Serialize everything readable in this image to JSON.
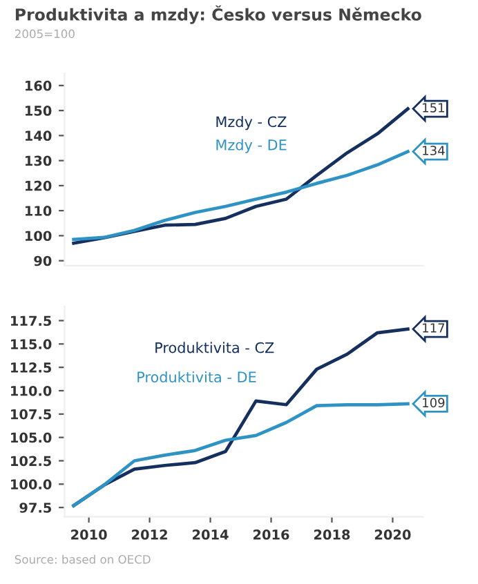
{
  "chart_data": [
    {
      "type": "line",
      "title": "Produktivita a mzdy: Česko versus Německo",
      "subtitle": "2005=100",
      "x": [
        2009.5,
        2010.5,
        2011.5,
        2012.5,
        2013.5,
        2014.5,
        2015.5,
        2016.5,
        2017.5,
        2018.5,
        2019.5,
        2020.5
      ],
      "series": [
        {
          "name": "Mzdy - CZ",
          "color": "#15305e",
          "values": [
            97,
            99.2,
            101.7,
            104.2,
            104.5,
            106.9,
            111.7,
            114.6,
            124.1,
            133.1,
            140.7,
            150.7
          ],
          "value_labels": [
            null,
            null,
            null,
            null,
            null,
            null,
            null,
            null,
            null,
            null,
            null,
            "151"
          ]
        },
        {
          "name": "Mzdy - DE",
          "color": "#2e93c4",
          "values": [
            98.5,
            99.3,
            102.1,
            106.1,
            109.3,
            111.7,
            114.6,
            117.4,
            120.9,
            124.1,
            128.3,
            133.6
          ],
          "value_labels": [
            null,
            null,
            null,
            null,
            null,
            null,
            null,
            null,
            null,
            null,
            null,
            "134"
          ]
        }
      ],
      "xlim": [
        2009.2,
        2021
      ],
      "xticks": [
        2010,
        2012,
        2014,
        2016,
        2018,
        2020
      ],
      "ylim": [
        88,
        165
      ],
      "yticks": [
        90,
        100,
        110,
        120,
        130,
        140,
        150,
        160
      ],
      "tick_labels": "y",
      "grid": false,
      "legend": false
    },
    {
      "type": "line",
      "x": [
        2009.5,
        2010.5,
        2011.5,
        2012.5,
        2013.5,
        2014.5,
        2015.5,
        2016.5,
        2017.5,
        2018.5,
        2019.5,
        2020.5
      ],
      "series": [
        {
          "name": "Produktivita - CZ",
          "color": "#15305e",
          "values": [
            97.7,
            99.9,
            101.6,
            102.0,
            102.3,
            103.5,
            108.9,
            108.5,
            112.3,
            113.9,
            116.2,
            116.6
          ],
          "value_labels": [
            null,
            null,
            null,
            null,
            null,
            null,
            null,
            null,
            null,
            null,
            null,
            "117"
          ]
        },
        {
          "name": "Produktivita - DE",
          "color": "#2e93c4",
          "values": [
            97.7,
            99.9,
            102.5,
            103.1,
            103.6,
            104.7,
            105.2,
            106.6,
            108.4,
            108.5,
            108.5,
            108.6
          ],
          "value_labels": [
            null,
            null,
            null,
            null,
            null,
            null,
            null,
            null,
            null,
            null,
            null,
            "109"
          ]
        }
      ],
      "annotations": [
        "Source: based on OECD"
      ],
      "xlim": [
        2009.2,
        2021
      ],
      "xticks": [
        2010,
        2012,
        2014,
        2016,
        2018,
        2020
      ],
      "ylim": [
        96.5,
        119
      ],
      "yticks": [
        {
          "value": 97.5,
          "label": "97.5"
        },
        {
          "value": 100,
          "label": "100.0"
        },
        {
          "value": 102.5,
          "label": "102.5"
        },
        {
          "value": 105,
          "label": "105.0"
        },
        {
          "value": 107.5,
          "label": "107.5"
        },
        {
          "value": 110,
          "label": "110.0"
        },
        {
          "value": 112.5,
          "label": "112.5"
        },
        {
          "value": 115,
          "label": "115.0"
        },
        {
          "value": 117.5,
          "label": "117.5"
        }
      ],
      "grid": false,
      "legend": false
    }
  ]
}
